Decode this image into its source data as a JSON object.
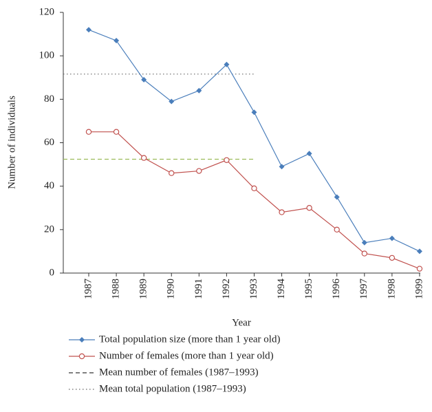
{
  "chart_data": {
    "type": "line",
    "xlabel": "Year",
    "ylabel": "Number of individuals",
    "categories": [
      "1987",
      "1988",
      "1989",
      "1990",
      "1991",
      "1992",
      "1993",
      "1994",
      "1995",
      "1996",
      "1997",
      "1998",
      "1999"
    ],
    "series": [
      {
        "name": "Total population size (more than 1 year old)",
        "color": "#4a7ebb",
        "marker": "diamond",
        "values": [
          112,
          107,
          89,
          79,
          84,
          96,
          74,
          49,
          55,
          35,
          14,
          16,
          10
        ]
      },
      {
        "name": "Number of females (more than 1 year old)",
        "color": "#c0504d",
        "marker": "circle",
        "values": [
          65,
          65,
          53,
          46,
          47,
          52,
          39,
          28,
          30,
          20,
          9,
          7,
          2
        ]
      }
    ],
    "reference_lines": [
      {
        "name": "Mean number of females (1987–1993)",
        "color": "#9bbb59",
        "style": "dashed",
        "value": 52.4,
        "until": "1993"
      },
      {
        "name": "Mean total population (1987–1993)",
        "color": "#666666",
        "style": "dotted",
        "value": 91.6,
        "until": "1993"
      }
    ],
    "ylim": [
      0,
      120
    ],
    "yticks": [
      0,
      20,
      40,
      60,
      80,
      100,
      120
    ],
    "grid": false
  }
}
